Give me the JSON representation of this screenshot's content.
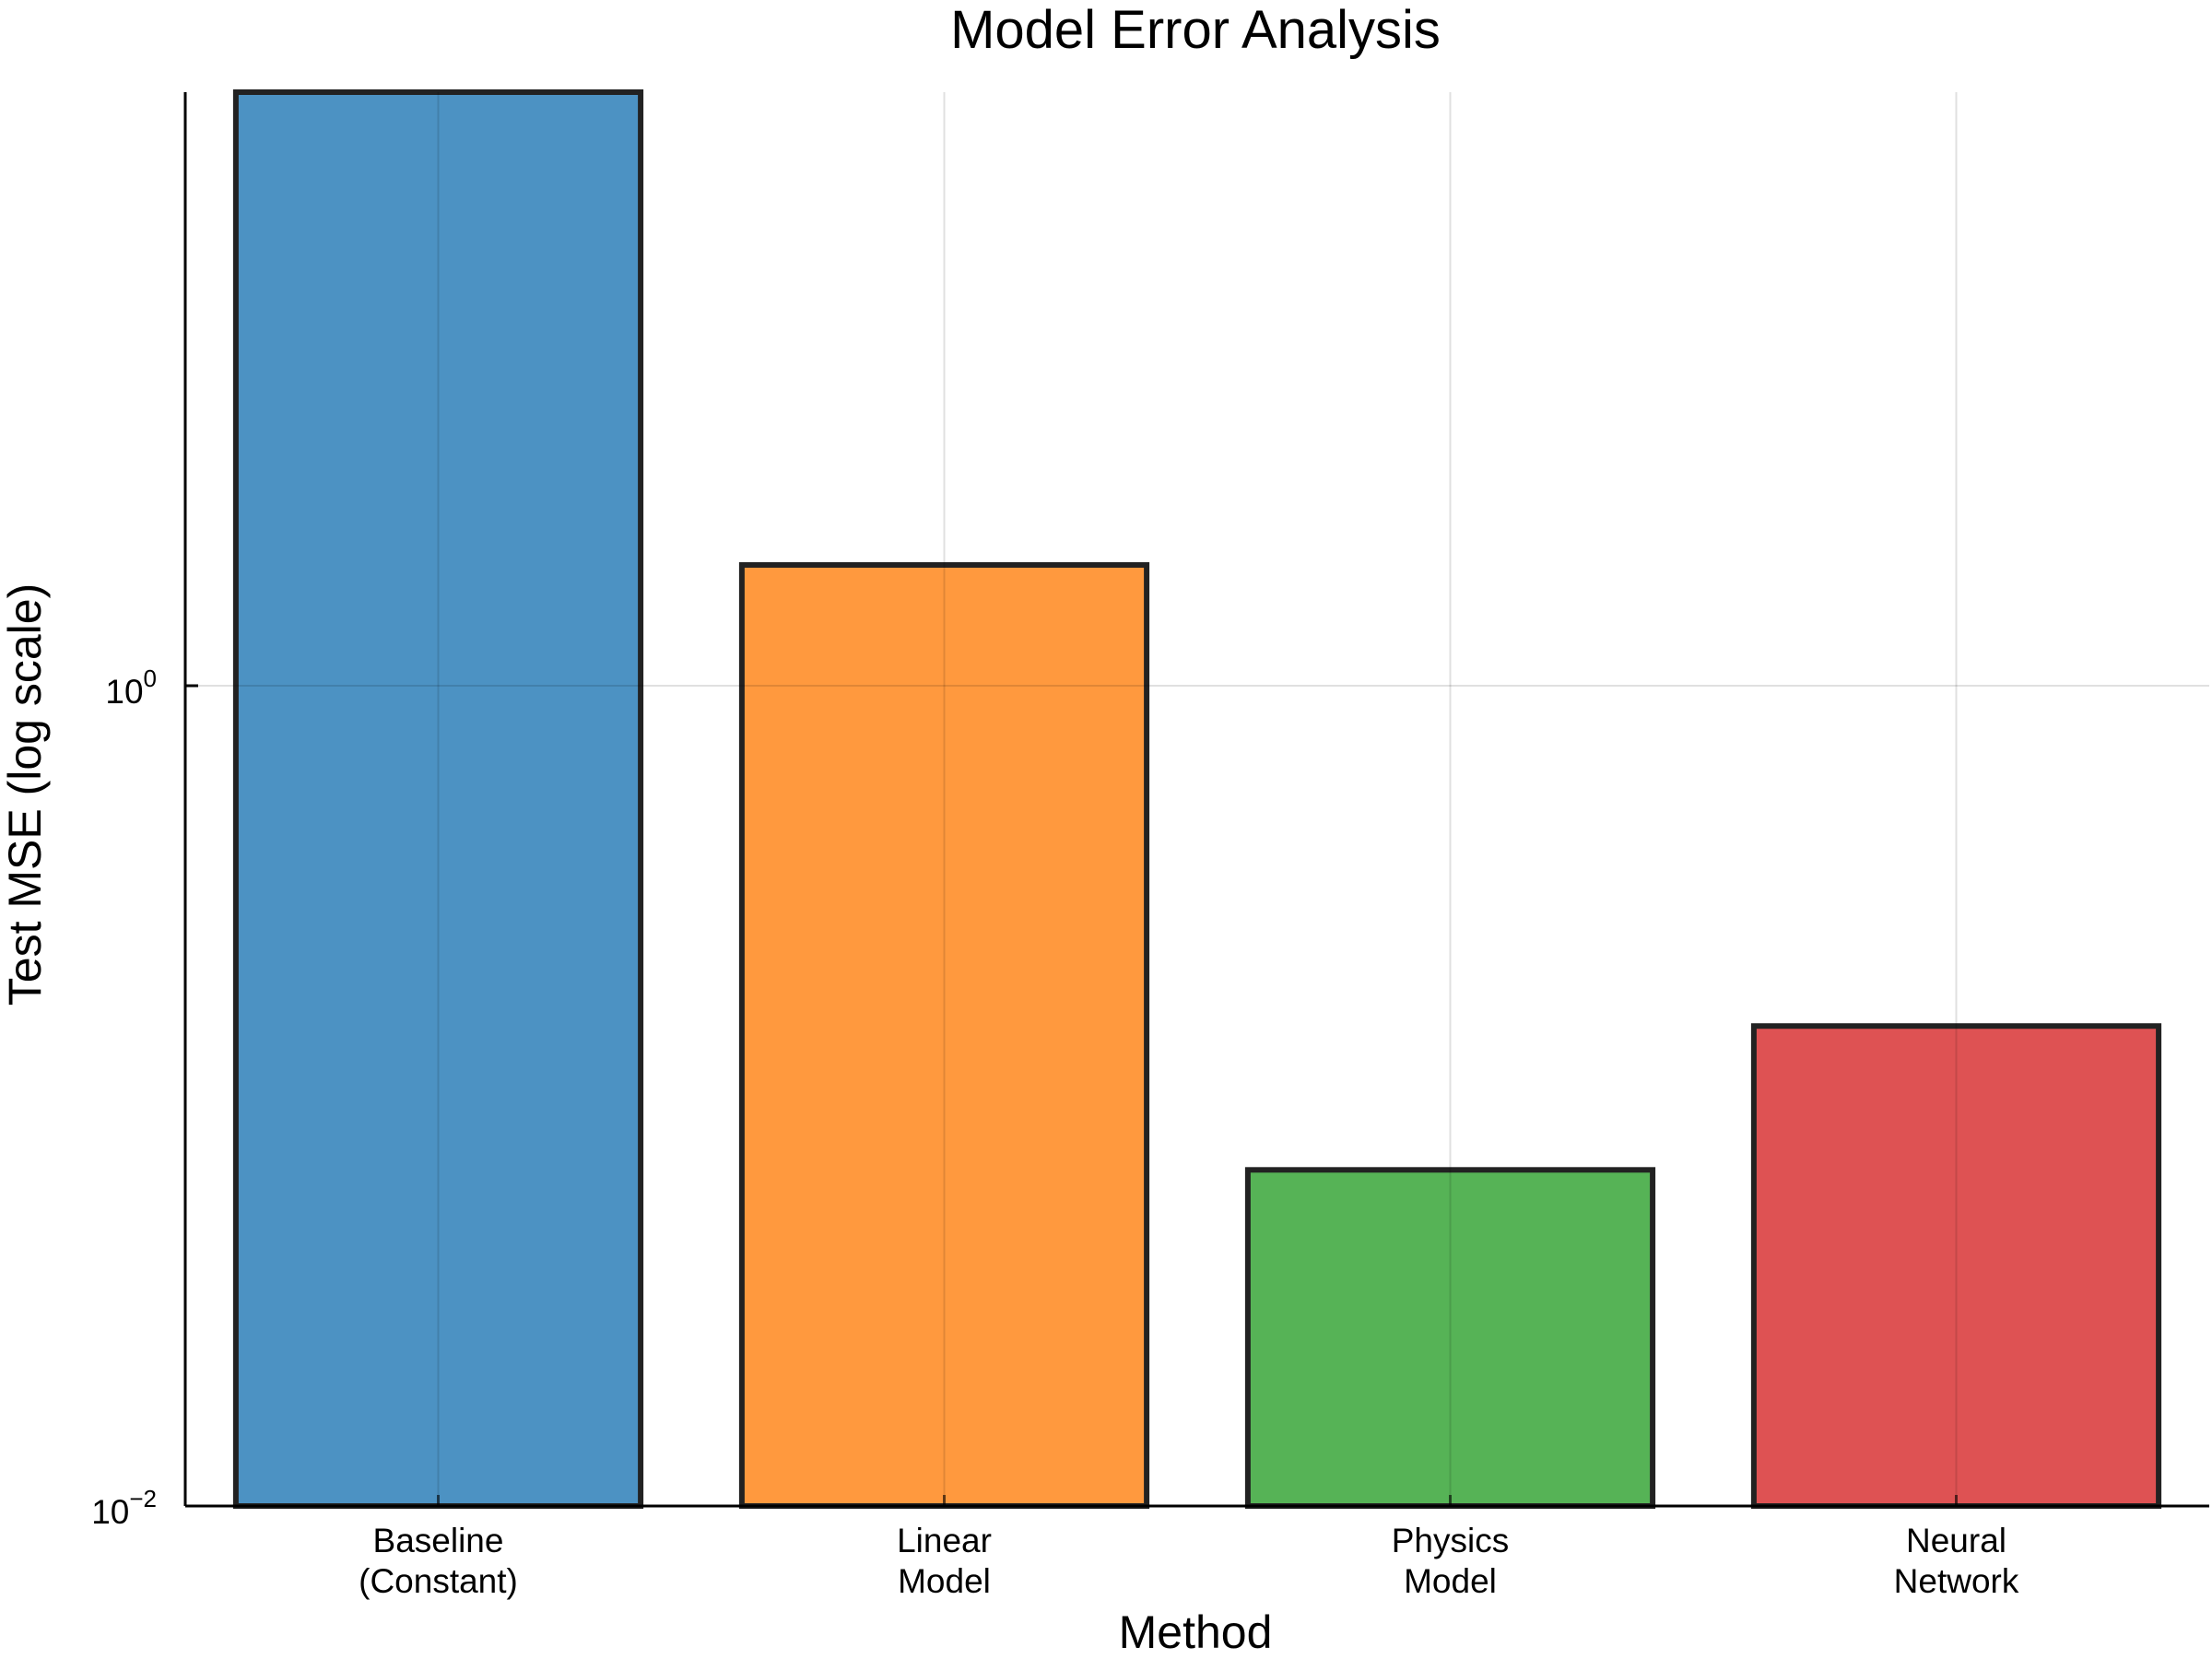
{
  "chart_data": {
    "type": "bar",
    "title": "Model Error Analysis",
    "xlabel": "Method",
    "ylabel": "Test MSE (log scale)",
    "yscale": "log",
    "ylim": [
      0.01,
      28
    ],
    "yticks": [
      {
        "value": 1,
        "base": "10",
        "exponent": "0"
      },
      {
        "value": 0.01,
        "base": "10",
        "exponent": "−2"
      }
    ],
    "categories": [
      [
        "Baseline",
        "(Constant)"
      ],
      [
        "Linear",
        "Model"
      ],
      [
        "Physics",
        "Model"
      ],
      [
        "Neural",
        "Network"
      ]
    ],
    "values": [
      28,
      1.97,
      0.066,
      0.148
    ],
    "colors": [
      "#1f77b4",
      "#ff7f0e",
      "#2ca02c",
      "#d62728"
    ],
    "bar_opacity": 0.8,
    "grid": true,
    "legend": false
  }
}
